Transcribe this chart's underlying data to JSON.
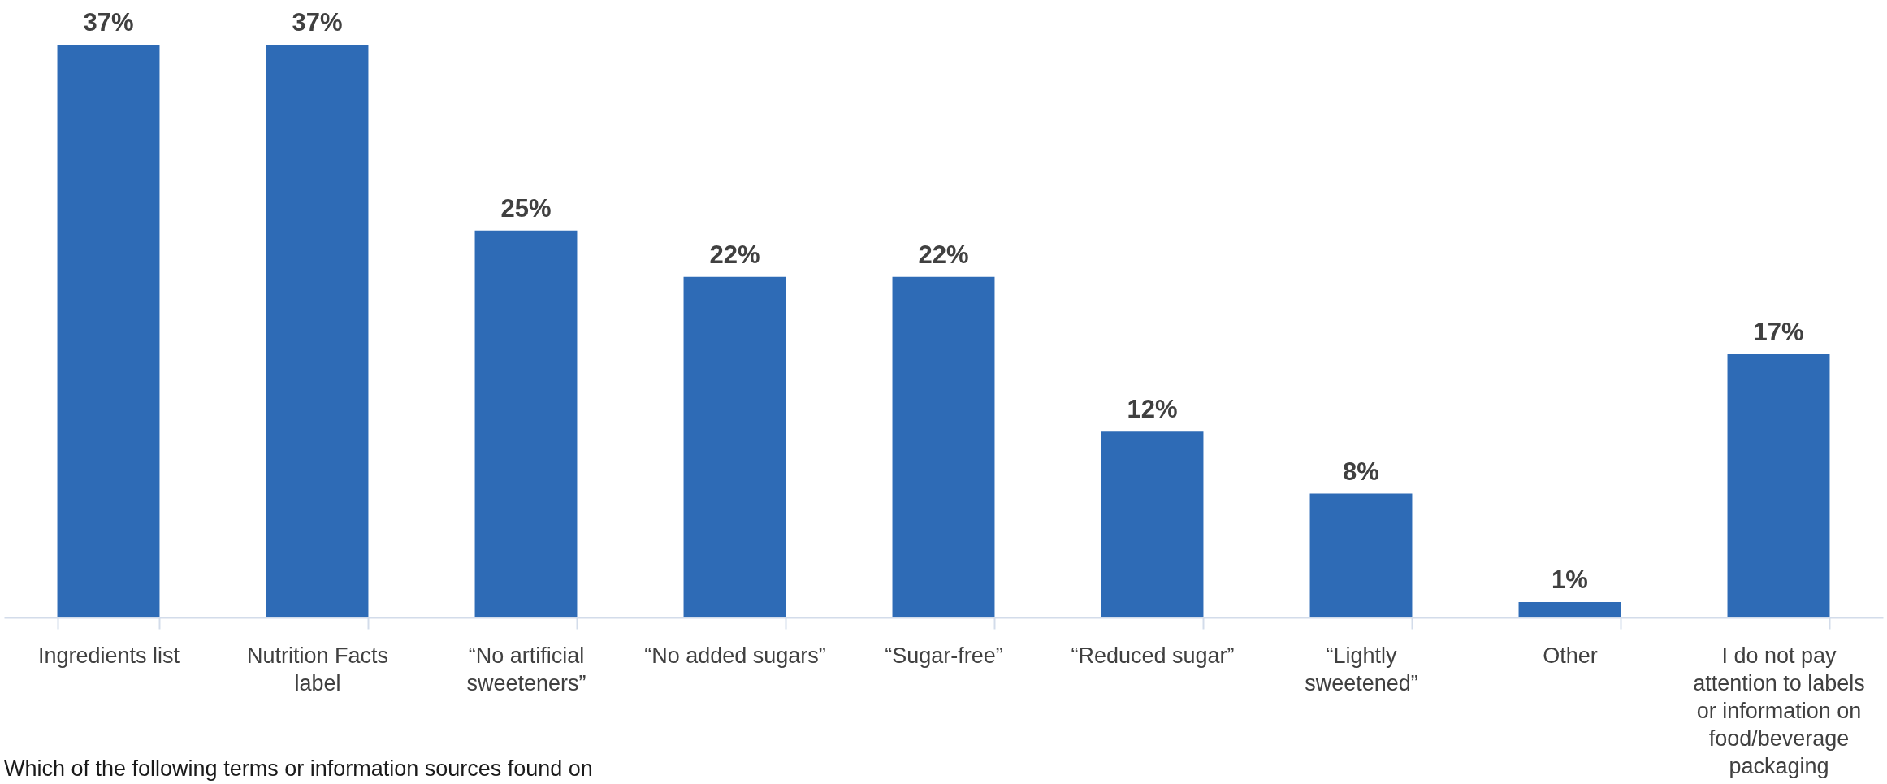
{
  "chart_data": {
    "type": "bar",
    "categories": [
      "Ingredients list",
      "Nutrition Facts label",
      "“No artificial sweeteners”",
      "“No added sugars”",
      "“Sugar-free”",
      "“Reduced sugar”",
      "“Lightly sweetened”",
      "Other",
      "I do not pay attention to labels or information on food/beverage packaging"
    ],
    "values": [
      37,
      37,
      25,
      22,
      22,
      12,
      8,
      1,
      17
    ],
    "value_labels": [
      "37%",
      "37%",
      "25%",
      "22%",
      "22%",
      "12%",
      "8%",
      "1%",
      "17%"
    ],
    "color": "#2e6bb6",
    "tick_labels": "x",
    "annotations": [
      "Which of the following terms or information sources found on"
    ]
  }
}
